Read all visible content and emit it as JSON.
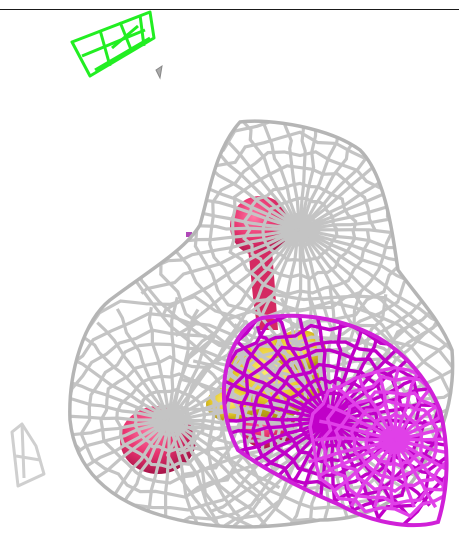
{
  "scene": {
    "background_color": "#ffffff",
    "colors": {
      "mesh_gray": "#c4c4c4",
      "mesh_gray_dark": "#8f8f8f",
      "mesh_magenta": "#c000c8",
      "mesh_magenta_light": "#e040e8",
      "mesh_green": "#22ee22",
      "blob_pink": "#e8336f",
      "blob_pink_dark": "#b01a50",
      "core_yellow": "#e5c82a",
      "core_yellow_dark": "#a88f10"
    },
    "objects": [
      {
        "name": "gray-electron-density-mesh",
        "color_key": "mesh_gray"
      },
      {
        "name": "magenta-electron-density-mesh",
        "color_key": "mesh_magenta"
      },
      {
        "name": "green-mesh-fragment",
        "color_key": "mesh_green"
      },
      {
        "name": "pink-atom-sphere-top",
        "color_key": "blob_pink"
      },
      {
        "name": "pink-atom-sphere-left",
        "color_key": "blob_pink"
      },
      {
        "name": "pink-atom-sphere-center",
        "color_key": "blob_pink"
      },
      {
        "name": "yellow-central-atom",
        "color_key": "core_yellow"
      }
    ]
  }
}
